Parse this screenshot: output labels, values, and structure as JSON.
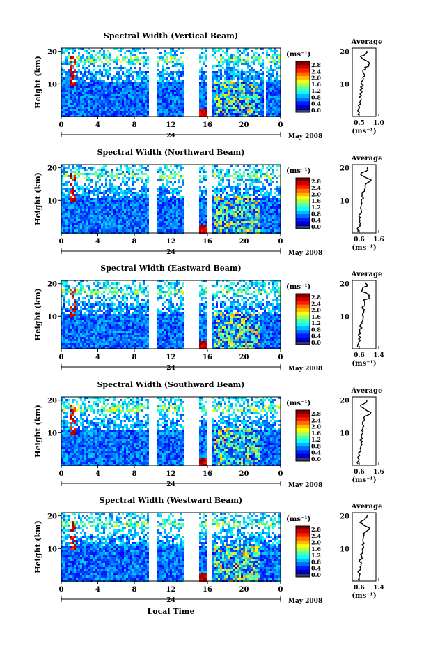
{
  "figure": {
    "ylabel": "Height (km)",
    "xlabel": "Local Time",
    "date_label": "May 2008",
    "day_label": "24",
    "avg_title": "Average",
    "unit": "(ms⁻¹)",
    "avg_xlabel": "(ms⁻¹)"
  },
  "chart_data": [
    {
      "type": "heatmap",
      "title": "Spectral Width (Vertical Beam)",
      "x_ticks": [
        "0",
        "4",
        "8",
        "12",
        "16",
        "20",
        "0"
      ],
      "y_ticks": [
        "20",
        "10"
      ],
      "colorbar_ticks": [
        "2.8",
        "2.4",
        "2.0",
        "1.6",
        "1.2",
        "0.8",
        "0.4",
        "0.0"
      ],
      "data_gaps_hours": [
        [
          9.4,
          10.3
        ],
        [
          13.3,
          15.0
        ],
        [
          16.0,
          16.4
        ],
        [
          22.0,
          22.3
        ]
      ],
      "avg_ticks": [
        "0.5",
        "1.0"
      ],
      "avg_xlim": [
        0.4,
        1.3
      ]
    },
    {
      "type": "heatmap",
      "title": "Spectral Width (Northward Beam)",
      "x_ticks": [
        "0",
        "4",
        "8",
        "12",
        "16",
        "20",
        "0"
      ],
      "y_ticks": [
        "20",
        "10"
      ],
      "colorbar_ticks": [
        "2.8",
        "2.4",
        "2.0",
        "1.6",
        "1.2",
        "0.8",
        "0.4",
        "0.0"
      ],
      "data_gaps_hours": [
        [
          9.4,
          10.3
        ],
        [
          13.3,
          15.0
        ],
        [
          16.0,
          16.4
        ]
      ],
      "avg_ticks": [
        "0.6",
        "1.6"
      ],
      "avg_xlim": [
        0.5,
        1.6
      ]
    },
    {
      "type": "heatmap",
      "title": "Spectral Width (Eastward Beam)",
      "x_ticks": [
        "0",
        "4",
        "8",
        "12",
        "16",
        "20",
        "0"
      ],
      "y_ticks": [
        "20",
        "10"
      ],
      "colorbar_ticks": [
        "2.8",
        "2.4",
        "2.0",
        "1.6",
        "1.2",
        "0.8",
        "0.4",
        "0.0"
      ],
      "data_gaps_hours": [
        [
          9.4,
          10.3
        ],
        [
          13.3,
          15.0
        ],
        [
          16.0,
          16.4
        ]
      ],
      "avg_ticks": [
        "0.6",
        "1.4"
      ],
      "avg_xlim": [
        0.5,
        1.5
      ]
    },
    {
      "type": "heatmap",
      "title": "Spectral Width (Southward Beam)",
      "x_ticks": [
        "0",
        "4",
        "8",
        "12",
        "16",
        "20",
        "0"
      ],
      "y_ticks": [
        "20",
        "10"
      ],
      "colorbar_ticks": [
        "2.8",
        "2.4",
        "2.0",
        "1.6",
        "1.2",
        "0.8",
        "0.4",
        "0.0"
      ],
      "data_gaps_hours": [
        [
          9.4,
          10.3
        ],
        [
          13.3,
          15.0
        ],
        [
          16.0,
          16.4
        ]
      ],
      "avg_ticks": [
        "0.6",
        "1.6"
      ],
      "avg_xlim": [
        0.5,
        1.6
      ]
    },
    {
      "type": "heatmap",
      "title": "Spectral Width (Westward Beam)",
      "x_ticks": [
        "0",
        "4",
        "8",
        "12",
        "16",
        "20",
        "0"
      ],
      "y_ticks": [
        "20",
        "10"
      ],
      "colorbar_ticks": [
        "2.8",
        "2.4",
        "2.0",
        "1.6",
        "1.2",
        "0.8",
        "0.4",
        "0.0"
      ],
      "data_gaps_hours": [
        [
          9.4,
          10.3
        ],
        [
          13.3,
          15.0
        ],
        [
          16.0,
          16.4
        ]
      ],
      "avg_ticks": [
        "0.6",
        "1.4"
      ],
      "avg_xlim": [
        0.5,
        1.5
      ]
    }
  ]
}
